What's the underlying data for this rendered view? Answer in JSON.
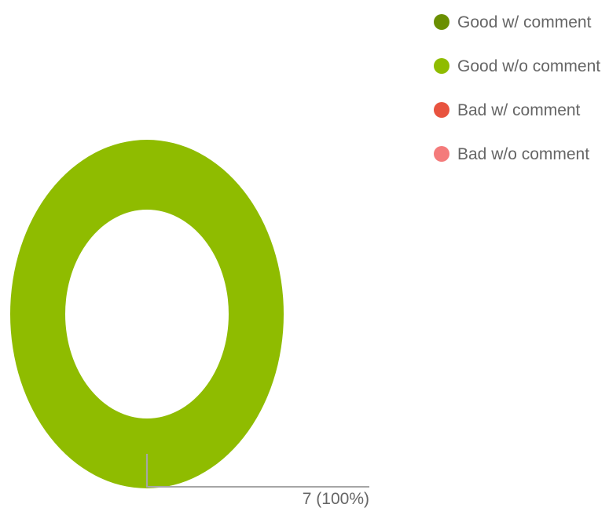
{
  "chart_data": {
    "type": "pie",
    "variant": "donut",
    "title": "",
    "categories": [
      "Good w/ comment",
      "Good w/o comment",
      "Bad w/ comment",
      "Bad w/o comment"
    ],
    "values": [
      0,
      7,
      0,
      0
    ],
    "colors": [
      "#6a8f00",
      "#8fbc00",
      "#e8533f",
      "#f47b7b"
    ],
    "data_labels": [
      "7 (100%)"
    ],
    "legend": {
      "position": "top-right",
      "items": [
        {
          "label": "Good w/ comment",
          "color": "#6a8f00"
        },
        {
          "label": "Good w/o comment",
          "color": "#8fbc00"
        },
        {
          "label": "Bad w/ comment",
          "color": "#e8533f"
        },
        {
          "label": "Bad w/o comment",
          "color": "#f47b7b"
        }
      ]
    },
    "leader_line_color": "#a6a6a6"
  }
}
